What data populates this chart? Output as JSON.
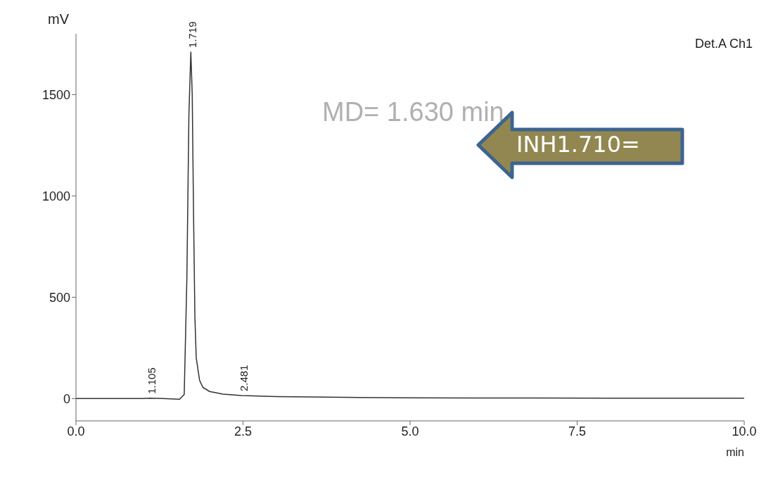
{
  "chart_data": {
    "type": "line",
    "ylabel": "mV",
    "xlabel": "min",
    "x": [
      0,
      0.5,
      1.0,
      1.105,
      1.3,
      1.55,
      1.62,
      1.66,
      1.69,
      1.719,
      1.74,
      1.76,
      1.78,
      1.8,
      1.85,
      1.9,
      2.0,
      2.2,
      2.481,
      3.0,
      4.0,
      5.0,
      6.0,
      8.0,
      9.0,
      10.0
    ],
    "series": [
      {
        "color": "#333333",
        "values": [
          0,
          0,
          0,
          2,
          0,
          -3,
          20,
          600,
          1400,
          1710,
          1500,
          900,
          400,
          200,
          90,
          55,
          35,
          22,
          15,
          10,
          6,
          4,
          3,
          2,
          2,
          2
        ]
      }
    ],
    "xlim": [
      0,
      10
    ],
    "xticks": [
      {
        "value": 0,
        "label": "0.0"
      },
      2.5,
      {
        "value": 5,
        "label": "5.0"
      },
      7.5,
      {
        "value": 10,
        "label": "10.0"
      }
    ],
    "ylim": [
      -110,
      1800
    ],
    "yticks": [
      0,
      500,
      1000,
      1500
    ],
    "grid": false,
    "legend": false,
    "marker": "none",
    "line_style": "solid",
    "annotations": [
      {
        "text": "1.719",
        "x": 1.719,
        "y": 1710
      },
      {
        "text": "1.105",
        "x": 1.105,
        "y": 2
      },
      {
        "text": "2.481",
        "x": 2.481,
        "y": 15
      },
      "Det.A Ch1",
      "MD= 1.630 min",
      "INH1.710="
    ]
  }
}
